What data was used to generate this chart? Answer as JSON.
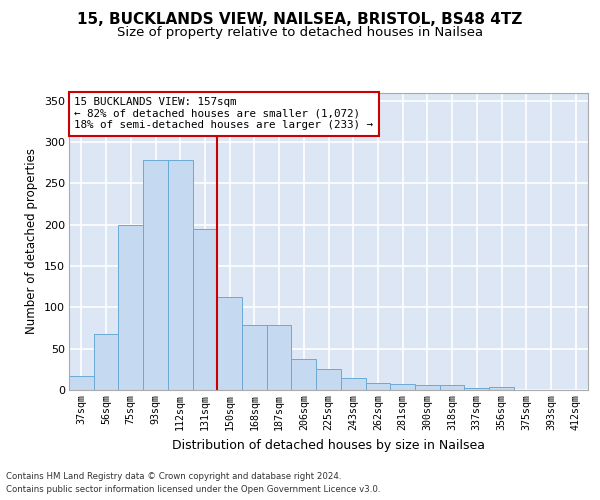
{
  "title1": "15, BUCKLANDS VIEW, NAILSEA, BRISTOL, BS48 4TZ",
  "title2": "Size of property relative to detached houses in Nailsea",
  "xlabel": "Distribution of detached houses by size in Nailsea",
  "ylabel": "Number of detached properties",
  "footnote1": "Contains HM Land Registry data © Crown copyright and database right 2024.",
  "footnote2": "Contains public sector information licensed under the Open Government Licence v3.0.",
  "categories": [
    "37sqm",
    "56sqm",
    "75sqm",
    "93sqm",
    "112sqm",
    "131sqm",
    "150sqm",
    "168sqm",
    "187sqm",
    "206sqm",
    "225sqm",
    "243sqm",
    "262sqm",
    "281sqm",
    "300sqm",
    "318sqm",
    "337sqm",
    "356sqm",
    "375sqm",
    "393sqm",
    "412sqm"
  ],
  "values": [
    17,
    68,
    200,
    278,
    278,
    195,
    113,
    79,
    79,
    38,
    25,
    14,
    9,
    7,
    6,
    6,
    3,
    4,
    0,
    0,
    0
  ],
  "bar_color": "#c5d9f0",
  "bar_edge_color": "#6aaad4",
  "annotation_text": "15 BUCKLANDS VIEW: 157sqm\n← 82% of detached houses are smaller (1,072)\n18% of semi-detached houses are larger (233) →",
  "vline_index": 6.0,
  "vline_color": "#cc0000",
  "annotation_box_color": "#ffffff",
  "annotation_box_edge": "#cc0000",
  "ylim": [
    0,
    360
  ],
  "yticks": [
    0,
    50,
    100,
    150,
    200,
    250,
    300,
    350
  ],
  "bg_color": "#dce6f5",
  "grid_color": "#ffffff",
  "fig_bg_color": "#ffffff",
  "title1_fontsize": 11,
  "title2_fontsize": 9.5,
  "xlabel_fontsize": 9,
  "ylabel_fontsize": 8.5
}
